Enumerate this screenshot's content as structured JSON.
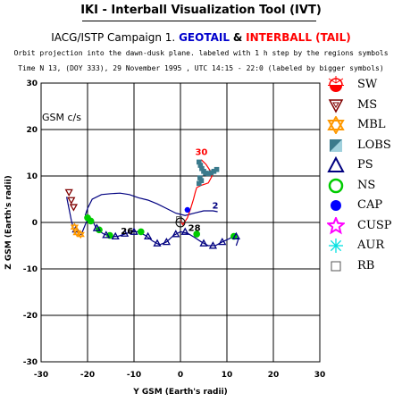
{
  "header": {
    "title": "IKI - Interball Visualization Tool (IVT)",
    "campaign_prefix": "IACG/ISTP Campaign 1.",
    "geotail": "GEOTAIL",
    "amp": "&",
    "interball": "INTERBALL (TAIL)",
    "note1": "Orbit projection into the dawn-dusk plane. labeled with 1 h step by the regions symbols",
    "note2": "Time N 13, (DOY 333), 29 November 1995 ,  UTC 14:15 - 22:0 (labeled by bigger symbols)"
  },
  "plot": {
    "frame_label": "GSM c/s"
  },
  "legend": [
    {
      "label": "SW",
      "icon": "sw-icon",
      "color": "#ff0000"
    },
    {
      "label": "MS",
      "icon": "ms-icon",
      "color": "#800000"
    },
    {
      "label": "MBL",
      "icon": "mbl-icon",
      "color": "#ff9900"
    },
    {
      "label": "LOBS",
      "icon": "lobs-icon",
      "color": "#3a7a8c"
    },
    {
      "label": "PS",
      "icon": "ps-icon",
      "color": "#000080"
    },
    {
      "label": "NS",
      "icon": "ns-icon",
      "color": "#00cc00"
    },
    {
      "label": "CAP",
      "icon": "cap-icon",
      "color": "#0000ff"
    },
    {
      "label": "CUSP",
      "icon": "cusp-icon",
      "color": "#ff00ff"
    },
    {
      "label": "AUR",
      "icon": "aur-icon",
      "color": "#00e0e0"
    },
    {
      "label": "RB",
      "icon": "rb-icon",
      "color": "#555555"
    }
  ],
  "chart_data": {
    "type": "line",
    "xlabel": "Y GSM (Earth's radii)",
    "ylabel": "Z GSM (Earth's radii)",
    "xlim": [
      -30,
      30
    ],
    "ylim": [
      -30,
      30
    ],
    "xticks": [
      -30,
      -20,
      -10,
      0,
      10,
      20,
      30
    ],
    "yticks": [
      -30,
      -20,
      -10,
      0,
      10,
      20,
      30
    ],
    "grid": true,
    "annotations": [
      {
        "text": "30",
        "x": 4.5,
        "y": 14.5,
        "color": "#ff0000"
      },
      {
        "text": "2",
        "x": 7.5,
        "y": 3.0,
        "color": "#000080"
      },
      {
        "text": "26",
        "x": -11.5,
        "y": -2.5,
        "color": "#000000"
      },
      {
        "text": "28",
        "x": 3.0,
        "y": -1.8,
        "color": "#000000"
      }
    ],
    "series": [
      {
        "color": "#000080",
        "points": [
          [
            -24.5,
            5.5
          ],
          [
            -24,
            3
          ],
          [
            -23.5,
            0.5
          ],
          [
            -23,
            -1.5
          ],
          [
            -22.5,
            -2.5
          ],
          [
            -22,
            -3
          ],
          [
            -21.3,
            -2.5
          ],
          [
            -20.5,
            -0.5
          ],
          [
            -19.8,
            1
          ],
          [
            -19,
            0.5
          ],
          [
            -18,
            -1.5
          ],
          [
            -16.5,
            -2.5
          ],
          [
            -15,
            -3
          ],
          [
            -13.5,
            -3
          ],
          [
            -12,
            -2.5
          ],
          [
            -10.5,
            -2
          ],
          [
            -9.2,
            -2
          ],
          [
            -7.5,
            -2.8
          ],
          [
            -6,
            -4
          ],
          [
            -4.5,
            -4.8
          ],
          [
            -3,
            -4.2
          ],
          [
            -1.5,
            -2.8
          ],
          [
            0,
            -2
          ],
          [
            1.5,
            -2.3
          ],
          [
            3,
            -3.2
          ],
          [
            4.5,
            -4.2
          ],
          [
            6,
            -5
          ],
          [
            7.5,
            -5
          ],
          [
            9,
            -4.2
          ],
          [
            10.5,
            -3.5
          ],
          [
            11.5,
            -3
          ],
          [
            12.5,
            -3.5
          ],
          [
            12,
            -5
          ]
        ]
      },
      {
        "color": "#000080",
        "points": [
          [
            -20.5,
            1.5
          ],
          [
            -20,
            3
          ],
          [
            -19,
            5
          ],
          [
            -17,
            6
          ],
          [
            -15,
            6.2
          ],
          [
            -13,
            6.3
          ],
          [
            -11,
            6
          ],
          [
            -9,
            5.3
          ],
          [
            -7,
            4.8
          ],
          [
            -5,
            4
          ],
          [
            -3,
            3
          ],
          [
            -1,
            2
          ],
          [
            1,
            1.5
          ],
          [
            3,
            2
          ],
          [
            5,
            2.5
          ],
          [
            7,
            2.5
          ],
          [
            8,
            2.3
          ]
        ]
      },
      {
        "color": "#ff0000",
        "points": [
          [
            0,
            0.5
          ],
          [
            0.5,
            -0.5
          ],
          [
            1.5,
            1
          ],
          [
            2.2,
            3
          ],
          [
            2.8,
            5
          ],
          [
            3.2,
            6.5
          ],
          [
            3.5,
            7.5
          ],
          [
            4.5,
            8
          ],
          [
            6,
            8.5
          ],
          [
            6.8,
            10
          ],
          [
            6.5,
            11
          ],
          [
            5.5,
            12.5
          ],
          [
            4.5,
            13.5
          ]
        ]
      }
    ],
    "markers": [
      {
        "region": "NS",
        "color": "#00cc00",
        "points": [
          [
            -20,
            1
          ],
          [
            -19.3,
            0.3
          ],
          [
            -17.5,
            -1.6
          ],
          [
            -15.2,
            -2.8
          ],
          [
            -8.5,
            -2
          ],
          [
            3.5,
            -2.5
          ],
          [
            11.5,
            -3
          ]
        ]
      },
      {
        "region": "PS",
        "color": "#000080",
        "points": [
          [
            -22.5,
            -1.5
          ],
          [
            -18,
            -1.2
          ],
          [
            -16,
            -2.7
          ],
          [
            -14,
            -3
          ],
          [
            -12,
            -2.4
          ],
          [
            -10,
            -2
          ],
          [
            -7,
            -3
          ],
          [
            -5,
            -4.5
          ],
          [
            -3,
            -4.2
          ],
          [
            -1,
            -2.5
          ],
          [
            1,
            -2
          ],
          [
            5,
            -4.5
          ],
          [
            7,
            -5
          ],
          [
            9,
            -4.2
          ],
          [
            12,
            -3
          ]
        ]
      },
      {
        "region": "LOBS",
        "color": "#3a7a8c",
        "points": [
          [
            4,
            13
          ],
          [
            4.3,
            12.3
          ],
          [
            4.6,
            11.6
          ],
          [
            5,
            11
          ],
          [
            5.4,
            10.6
          ],
          [
            6,
            10.5
          ],
          [
            6.6,
            10.7
          ],
          [
            7.2,
            11
          ],
          [
            7.8,
            11.4
          ],
          [
            4.2,
            9.6
          ],
          [
            4.5,
            9
          ],
          [
            4,
            8.4
          ]
        ]
      },
      {
        "region": "MBL",
        "color": "#ff9900",
        "points": [
          [
            -22.3,
            -2.2
          ],
          [
            -21.5,
            -2.6
          ],
          [
            -22.8,
            -1
          ]
        ]
      },
      {
        "region": "CAP",
        "color": "#0000ff",
        "points": [
          [
            1.5,
            2.7
          ]
        ]
      },
      {
        "region": "RB",
        "color": "#555555",
        "points": [
          [
            -0.3,
            0.7
          ]
        ]
      },
      {
        "region": "MS",
        "color": "#800000",
        "points": [
          [
            -24,
            6.5
          ],
          [
            -23.5,
            4.8
          ],
          [
            -23,
            3.3
          ]
        ]
      }
    ]
  }
}
